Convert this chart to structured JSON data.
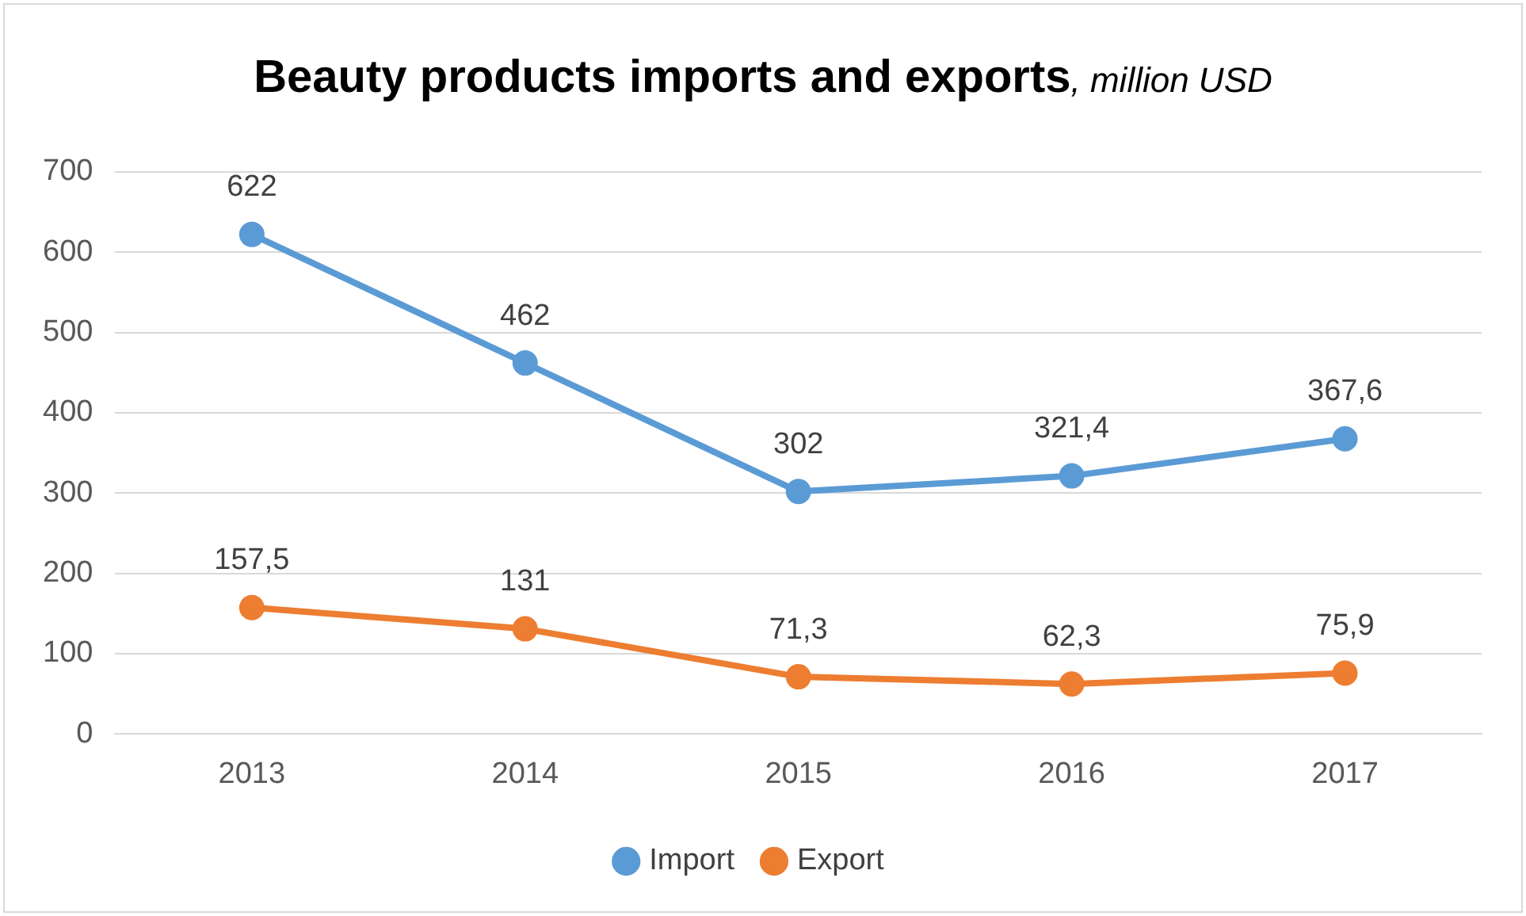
{
  "chart_data": {
    "type": "line",
    "title": "Beauty products imports and exports",
    "subtitle": ", million USD",
    "categories": [
      "2013",
      "2014",
      "2015",
      "2016",
      "2017"
    ],
    "series": [
      {
        "name": "Import",
        "color": "#5b9bd5",
        "values": [
          622,
          462,
          302,
          321.4,
          367.6
        ],
        "value_labels": [
          "622",
          "462",
          "302",
          "321,4",
          "367,6"
        ]
      },
      {
        "name": "Export",
        "color": "#ed7d31",
        "values": [
          157.5,
          131,
          71.3,
          62.3,
          75.9
        ],
        "value_labels": [
          "157,5",
          "131",
          "71,3",
          "62,3",
          "75,9"
        ]
      }
    ],
    "ylim": [
      0,
      700
    ],
    "yticks": [
      0,
      100,
      200,
      300,
      400,
      500,
      600,
      700
    ],
    "grid": "y",
    "legend": "bottom",
    "marker": "circle",
    "line_style": "solid"
  }
}
